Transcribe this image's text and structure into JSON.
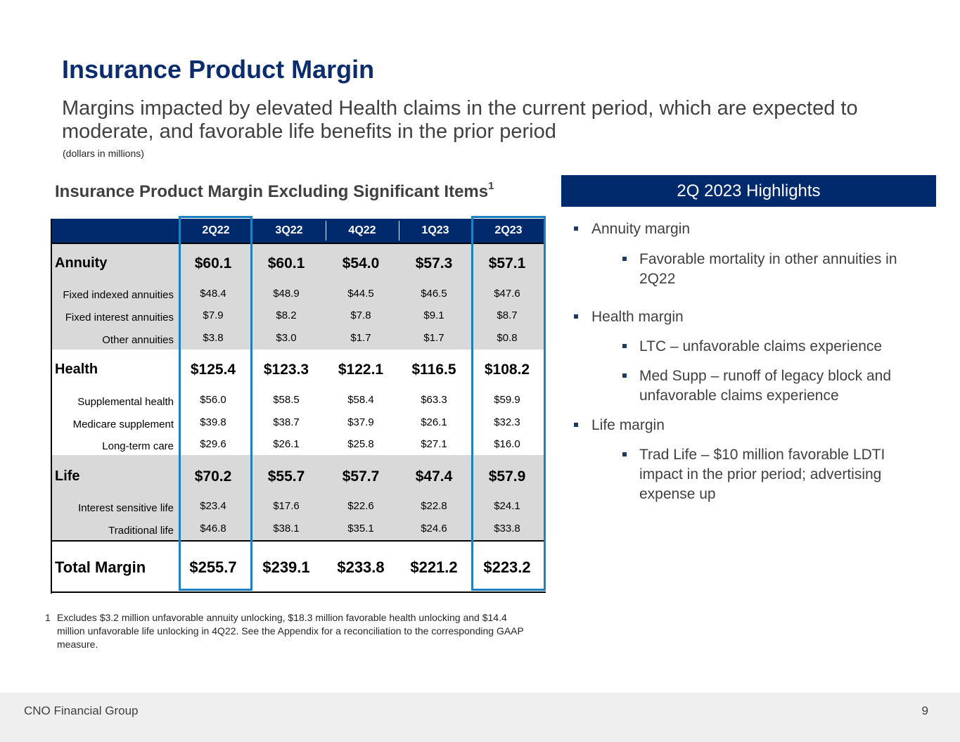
{
  "title": "Insurance Product Margin",
  "subtitle": "Margins impacted by elevated Health claims in the current period, which are expected to moderate, and favorable life benefits in the prior period",
  "units_note": "(dollars in millions)",
  "table": {
    "title": "Insurance Product Margin Excluding Significant Items",
    "title_sup": "1",
    "columns": [
      "2Q22",
      "3Q22",
      "4Q22",
      "1Q23",
      "2Q23"
    ],
    "annuity": {
      "label": "Annuity",
      "values": [
        "$60.1",
        "$60.1",
        "$54.0",
        "$57.3",
        "$57.1"
      ],
      "rows": [
        {
          "label": "Fixed indexed annuities",
          "values": [
            "$48.4",
            "$48.9",
            "$44.5",
            "$46.5",
            "$47.6"
          ]
        },
        {
          "label": "Fixed interest annuities",
          "values": [
            "$7.9",
            "$8.2",
            "$7.8",
            "$9.1",
            "$8.7"
          ]
        },
        {
          "label": "Other annuities",
          "values": [
            "$3.8",
            "$3.0",
            "$1.7",
            "$1.7",
            "$0.8"
          ]
        }
      ]
    },
    "health": {
      "label": "Health",
      "values": [
        "$125.4",
        "$123.3",
        "$122.1",
        "$116.5",
        "$108.2"
      ],
      "rows": [
        {
          "label": "Supplemental health",
          "values": [
            "$56.0",
            "$58.5",
            "$58.4",
            "$63.3",
            "$59.9"
          ]
        },
        {
          "label": "Medicare supplement",
          "values": [
            "$39.8",
            "$38.7",
            "$37.9",
            "$26.1",
            "$32.3"
          ]
        },
        {
          "label": "Long-term care",
          "values": [
            "$29.6",
            "$26.1",
            "$25.8",
            "$27.1",
            "$16.0"
          ]
        }
      ]
    },
    "life": {
      "label": "Life",
      "values": [
        "$70.2",
        "$55.7",
        "$57.7",
        "$47.4",
        "$57.9"
      ],
      "rows": [
        {
          "label": "Interest sensitive life",
          "values": [
            "$23.4",
            "$17.6",
            "$22.6",
            "$22.8",
            "$24.1"
          ]
        },
        {
          "label": "Traditional life",
          "values": [
            "$46.8",
            "$38.1",
            "$35.1",
            "$24.6",
            "$33.8"
          ]
        }
      ]
    },
    "total": {
      "label": "Total Margin",
      "values": [
        "$255.7",
        "$239.1",
        "$233.8",
        "$221.2",
        "$223.2"
      ]
    }
  },
  "footnote": {
    "number": "1",
    "text": "Excludes $3.2 million unfavorable annuity unlocking, $18.3 million favorable health unlocking and $14.4 million unfavorable life unlocking in 4Q22.  See the Appendix for a reconciliation to the corresponding GAAP measure."
  },
  "highlights": {
    "title": "2Q 2023 Highlights",
    "annuity_margin": "Annuity margin",
    "annuity_detail": "Favorable mortality in other annuities in 2Q22",
    "health_margin": "Health margin",
    "health_detail_1": "LTC – unfavorable claims experience",
    "health_detail_2": "Med Supp – runoff of legacy block and unfavorable claims experience",
    "life_margin": "Life margin",
    "life_detail": "Trad Life – $10 million favorable LDTI impact in the prior period; advertising expense up"
  },
  "footer": {
    "company": "CNO Financial Group",
    "page": "9"
  }
}
